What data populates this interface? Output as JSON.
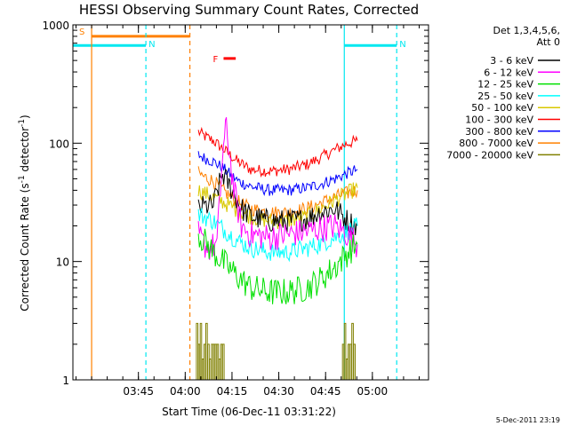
{
  "window": {
    "background": "#ffffff"
  },
  "footer": {
    "stamp": "5-Dec-2011 23:19"
  },
  "chart_data": {
    "type": "line",
    "title": "HESSI Observing Summary Count Rates, Corrected",
    "xlabel": "Start Time (06-Dec-11 03:31:22)",
    "ylabel": "Corrected Count Rate (s",
    "ylabel_sup1": "-1",
    "ylabel_mid": " detector",
    "ylabel_sup2": "-1",
    "ylabel_end": ")",
    "yscale": "log",
    "ylim": [
      1,
      1000
    ],
    "xlim_minutes": [
      3.4,
      5.3
    ],
    "x_unit": "hours (UT)",
    "x_ticks": [
      {
        "t": 3.75,
        "label": "03:45"
      },
      {
        "t": 4.0,
        "label": "04:00"
      },
      {
        "t": 4.25,
        "label": "04:15"
      },
      {
        "t": 4.5,
        "label": "04:30"
      },
      {
        "t": 4.75,
        "label": "04:45"
      },
      {
        "t": 5.0,
        "label": "05:00"
      }
    ],
    "y_ticks": [
      {
        "v": 1,
        "label": "1"
      },
      {
        "v": 10,
        "label": "10"
      },
      {
        "v": 100,
        "label": "100"
      },
      {
        "v": 1000,
        "label": "1000"
      }
    ],
    "legend": {
      "placement": "right",
      "header1": "Det 1,3,4,5,6,",
      "header2": "Att 0",
      "entries": [
        {
          "label": "3 - 6 keV",
          "color": "#000000"
        },
        {
          "label": "6 - 12 keV",
          "color": "#ff00ff"
        },
        {
          "label": "12 - 25 keV",
          "color": "#00e000"
        },
        {
          "label": "25 - 50 keV",
          "color": "#00ffff"
        },
        {
          "label": "50 - 100 keV",
          "color": "#d8c800"
        },
        {
          "label": "100 - 300 keV",
          "color": "#ff0000"
        },
        {
          "label": "300 - 800 keV",
          "color": "#0000ff"
        },
        {
          "label": "800 - 7000 keV",
          "color": "#ff8000"
        },
        {
          "label": "7000 - 20000 keV",
          "color": "#808000"
        }
      ]
    },
    "flags": [
      {
        "label": "S",
        "color": "#ff8000",
        "start": 3.5,
        "end": 4.025,
        "level": 800
      },
      {
        "label": "N",
        "color": "#00e8f0",
        "start": 3.4,
        "end": 3.79,
        "level": 670
      },
      {
        "label": "N",
        "color": "#00e8f0",
        "start": 4.85,
        "end": 5.13,
        "level": 670
      },
      {
        "label": "F",
        "color": "#ff0000",
        "start": 4.205,
        "end": 4.27,
        "level": 520
      }
    ],
    "vlines": [
      {
        "t": 3.5,
        "color": "#ff8000",
        "style": "solid"
      },
      {
        "t": 3.79,
        "color": "#00e8f0",
        "style": "dash"
      },
      {
        "t": 4.025,
        "color": "#ff8000",
        "style": "dash"
      },
      {
        "t": 4.85,
        "color": "#00e8f0",
        "style": "solid"
      },
      {
        "t": 5.13,
        "color": "#00e8f0",
        "style": "dash"
      }
    ],
    "series": [
      {
        "color": "#ff0000",
        "noise": 0.05,
        "x": [
          4.07,
          4.1,
          4.15,
          4.2,
          4.28,
          4.35,
          4.45,
          4.55,
          4.65,
          4.72,
          4.8,
          4.87,
          4.92
        ],
        "y": [
          125,
          115,
          105,
          90,
          70,
          60,
          58,
          60,
          66,
          75,
          88,
          100,
          105
        ]
      },
      {
        "color": "#0000ff",
        "noise": 0.05,
        "x": [
          4.07,
          4.1,
          4.15,
          4.2,
          4.28,
          4.35,
          4.45,
          4.55,
          4.65,
          4.72,
          4.8,
          4.87,
          4.92
        ],
        "y": [
          80,
          75,
          70,
          62,
          48,
          43,
          40,
          40,
          42,
          45,
          50,
          56,
          60
        ]
      },
      {
        "color": "#ff8000",
        "noise": 0.06,
        "x": [
          4.07,
          4.1,
          4.15,
          4.2,
          4.28,
          4.35,
          4.45,
          4.55,
          4.65,
          4.72,
          4.8,
          4.87,
          4.92
        ],
        "y": [
          56,
          52,
          48,
          40,
          32,
          28,
          26,
          26,
          28,
          31,
          35,
          38,
          40
        ]
      },
      {
        "color": "#d8c800",
        "noise": 0.07,
        "x": [
          4.07,
          4.1,
          4.15,
          4.2,
          4.28,
          4.35,
          4.45,
          4.55,
          4.65,
          4.72,
          4.8,
          4.87,
          4.92
        ],
        "y": [
          40,
          38,
          35,
          32,
          27,
          24,
          22,
          22,
          24,
          28,
          33,
          38,
          42
        ]
      },
      {
        "color": "#000000",
        "noise": 0.1,
        "x": [
          4.07,
          4.1,
          4.15,
          4.2,
          4.25,
          4.3,
          4.35,
          4.45,
          4.55,
          4.65,
          4.72,
          4.8,
          4.87,
          4.92
        ],
        "y": [
          28,
          29,
          30,
          55,
          40,
          28,
          24,
          22,
          22,
          23,
          26,
          28,
          22,
          20
        ]
      },
      {
        "color": "#00ffff",
        "noise": 0.08,
        "x": [
          4.07,
          4.1,
          4.15,
          4.2,
          4.28,
          4.35,
          4.45,
          4.55,
          4.65,
          4.72,
          4.8,
          4.87,
          4.92
        ],
        "y": [
          25,
          24,
          22,
          19,
          15,
          13,
          12,
          12,
          13,
          14,
          16,
          18,
          20
        ]
      },
      {
        "color": "#ff00ff",
        "noise": 0.12,
        "x": [
          4.07,
          4.1,
          4.13,
          4.17,
          4.2,
          4.22,
          4.26,
          4.3,
          4.35,
          4.45,
          4.55,
          4.65,
          4.72,
          4.8,
          4.87,
          4.92
        ],
        "y": [
          17,
          14,
          13,
          14,
          80,
          140,
          40,
          20,
          17,
          16,
          17,
          18,
          19,
          20,
          17,
          14
        ]
      },
      {
        "color": "#00e000",
        "noise": 0.12,
        "x": [
          4.07,
          4.1,
          4.15,
          4.2,
          4.28,
          4.35,
          4.45,
          4.55,
          4.65,
          4.72,
          4.8,
          4.87,
          4.92
        ],
        "y": [
          17,
          15,
          12,
          10,
          7.5,
          6,
          5.5,
          5.5,
          6,
          7,
          9,
          12,
          14
        ]
      },
      {
        "color": "#808000",
        "noise": 0.0,
        "steps": true,
        "x": [
          4.06,
          4.07,
          4.08,
          4.09,
          4.1,
          4.11,
          4.12,
          4.13,
          4.14,
          4.15,
          4.16,
          4.17,
          4.18,
          4.19,
          4.2
        ],
        "y": [
          3,
          2,
          3,
          1.5,
          2,
          3,
          2,
          1.5,
          2,
          2,
          2,
          2,
          1.5,
          2,
          2
        ]
      },
      {
        "color": "#808000",
        "noise": 0.0,
        "steps": true,
        "x": [
          4.84,
          4.85,
          4.86,
          4.87,
          4.88,
          4.89,
          4.9
        ],
        "y": [
          2,
          3,
          1.5,
          2,
          2,
          3,
          2
        ]
      }
    ]
  }
}
